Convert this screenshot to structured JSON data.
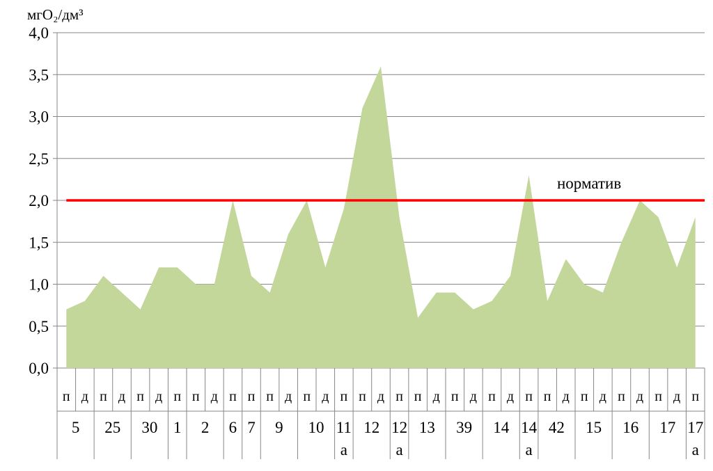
{
  "chart_data": {
    "type": "area",
    "ylabel": "мгO₂/дм³",
    "ylim": [
      0,
      4
    ],
    "yticks": [
      "0,0",
      "0,5",
      "1,0",
      "1,5",
      "2,0",
      "2,5",
      "3,0",
      "3,5",
      "4,0"
    ],
    "grid": true,
    "area_color": "#c4d79b",
    "line_color": "#ff0000",
    "reference_line": {
      "label": "норматив",
      "value": 2.0
    },
    "points": [
      {
        "sub": "п",
        "value": 0.7
      },
      {
        "sub": "д",
        "value": 0.8
      },
      {
        "sub": "п",
        "value": 1.1
      },
      {
        "sub": "д",
        "value": 0.9
      },
      {
        "sub": "п",
        "value": 0.7
      },
      {
        "sub": "д",
        "value": 1.2
      },
      {
        "sub": "п",
        "value": 1.2
      },
      {
        "sub": "п",
        "value": 1.0
      },
      {
        "sub": "д",
        "value": 1.0
      },
      {
        "sub": "п",
        "value": 2.0
      },
      {
        "sub": "п",
        "value": 1.1
      },
      {
        "sub": "п",
        "value": 0.9
      },
      {
        "sub": "д",
        "value": 1.6
      },
      {
        "sub": "п",
        "value": 2.0
      },
      {
        "sub": "д",
        "value": 1.2
      },
      {
        "sub": "п",
        "value": 1.9
      },
      {
        "sub": "п",
        "value": 3.1
      },
      {
        "sub": "д",
        "value": 3.6
      },
      {
        "sub": "п",
        "value": 1.8
      },
      {
        "sub": "п",
        "value": 0.6
      },
      {
        "sub": "д",
        "value": 0.9
      },
      {
        "sub": "п",
        "value": 0.9
      },
      {
        "sub": "д",
        "value": 0.7
      },
      {
        "sub": "п",
        "value": 0.8
      },
      {
        "sub": "д",
        "value": 1.1
      },
      {
        "sub": "п",
        "value": 2.3
      },
      {
        "sub": "п",
        "value": 0.8
      },
      {
        "sub": "д",
        "value": 1.3
      },
      {
        "sub": "п",
        "value": 1.0
      },
      {
        "sub": "д",
        "value": 0.9
      },
      {
        "sub": "п",
        "value": 1.5
      },
      {
        "sub": "д",
        "value": 2.0
      },
      {
        "sub": "п",
        "value": 1.8
      },
      {
        "sub": "д",
        "value": 1.2
      },
      {
        "sub": "п",
        "value": 1.8
      }
    ],
    "groups": [
      {
        "label": "5",
        "count": 2
      },
      {
        "label": "25",
        "count": 2
      },
      {
        "label": "30",
        "count": 2
      },
      {
        "label": "1",
        "count": 1
      },
      {
        "label": "2",
        "count": 2
      },
      {
        "label": "6",
        "count": 1
      },
      {
        "label": "7",
        "count": 1
      },
      {
        "label": "9",
        "count": 2
      },
      {
        "label": "10",
        "count": 2
      },
      {
        "label": "11",
        "label2": "а",
        "count": 1
      },
      {
        "label": "12",
        "count": 2
      },
      {
        "label": "12",
        "label2": "а",
        "count": 1
      },
      {
        "label": "13",
        "count": 2
      },
      {
        "label": "39",
        "count": 2
      },
      {
        "label": "14",
        "count": 2
      },
      {
        "label": "14",
        "label2": "а",
        "count": 1
      },
      {
        "label": "42",
        "count": 2
      },
      {
        "label": "15",
        "count": 2
      },
      {
        "label": "16",
        "count": 2
      },
      {
        "label": "17",
        "count": 2
      },
      {
        "label": "17",
        "label2": "а",
        "count": 1
      }
    ]
  }
}
